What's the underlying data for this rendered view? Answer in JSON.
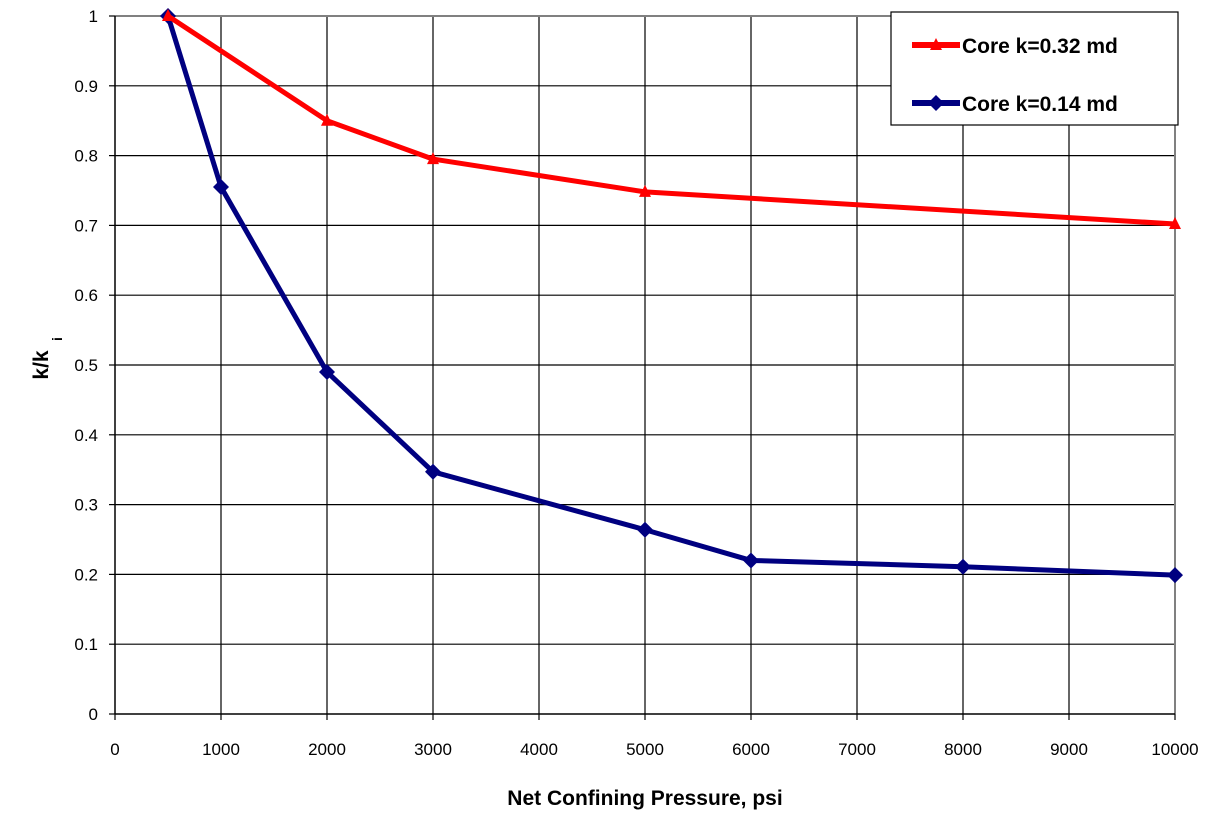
{
  "chart_data": {
    "type": "line",
    "title": "",
    "xlabel": "Net Confining Pressure, psi",
    "ylabel_main": "k/k",
    "ylabel_sub": "i",
    "xlim": [
      0,
      10000
    ],
    "ylim": [
      0,
      1
    ],
    "xticks": [
      0,
      1000,
      2000,
      3000,
      4000,
      5000,
      6000,
      7000,
      8000,
      9000,
      10000
    ],
    "yticks": [
      0,
      0.1,
      0.2,
      0.3,
      0.4,
      0.5,
      0.6,
      0.7,
      0.8,
      0.9,
      1
    ],
    "ytick_labels": [
      "0",
      "0.1",
      "0.2",
      "0.3",
      "0.4",
      "0.5",
      "0.6",
      "0.7",
      "0.8",
      "0.9",
      "1"
    ],
    "grid": true,
    "legend_position": "top-right",
    "series": [
      {
        "name": "Core  k=0.32 md",
        "color": "#ff0000",
        "marker": "triangle",
        "x": [
          500,
          2000,
          3000,
          5000,
          10000
        ],
        "y": [
          1.0,
          0.85,
          0.795,
          0.748,
          0.702
        ]
      },
      {
        "name": "Core  k=0.14 md",
        "color": "#000080",
        "marker": "diamond",
        "x": [
          500,
          1000,
          2000,
          3000,
          5000,
          6000,
          8000,
          10000
        ],
        "y": [
          1.0,
          0.755,
          0.49,
          0.347,
          0.264,
          0.22,
          0.211,
          0.199
        ]
      }
    ]
  }
}
